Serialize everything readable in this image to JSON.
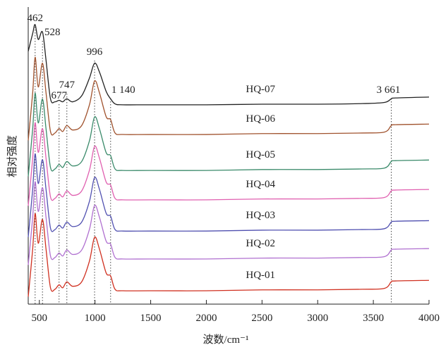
{
  "chart_data": {
    "type": "line",
    "x_label": "波数/cm⁻¹",
    "y_label": "相对强度",
    "x": [
      400,
      440,
      462,
      490,
      528,
      560,
      600,
      640,
      677,
      710,
      747,
      800,
      880,
      950,
      996,
      1040,
      1100,
      1140,
      1180,
      1250,
      1500,
      2000,
      2500,
      3000,
      3400,
      3600,
      3661,
      3700,
      4000
    ],
    "series": [
      {
        "name": "HQ-07",
        "color": "#222222",
        "values": [
          85.1,
          91.1,
          94.1,
          89.1,
          91.6,
          82.1,
          69.1,
          68.1,
          68.6,
          68.1,
          69.1,
          68.1,
          70.1,
          76.1,
          81.1,
          78.1,
          71.6,
          69.1,
          67.4,
          67.1,
          67.1,
          67.1,
          67.3,
          67.3,
          67.5,
          67.9,
          69.1,
          69.4,
          69.7
        ]
      },
      {
        "name": "HQ-06",
        "color": "#a0522d",
        "values": [
          55.1,
          71.1,
          83.1,
          73.1,
          81.1,
          71.1,
          58.1,
          57.6,
          59.1,
          58.1,
          60.1,
          58.6,
          60.1,
          67.1,
          75.1,
          71.1,
          63.1,
          62.1,
          57.6,
          57.1,
          57.1,
          57.1,
          57.4,
          57.4,
          57.6,
          57.9,
          60.1,
          60.4,
          60.6
        ]
      },
      {
        "name": "HQ-05",
        "color": "#3a8a6a",
        "values": [
          43,
          59,
          71,
          61,
          69,
          59,
          46,
          45.5,
          47,
          46,
          48,
          46.5,
          48,
          55,
          63,
          59,
          51,
          50,
          45.5,
          45,
          45,
          45,
          45.3,
          45.3,
          45.5,
          45.8,
          48,
          48.3,
          48.5
        ]
      },
      {
        "name": "HQ-04",
        "color": "#e060b0",
        "values": [
          33.1,
          49.1,
          61.1,
          51.1,
          59.1,
          49.1,
          36.1,
          35.6,
          37.1,
          36.1,
          38.1,
          36.6,
          38.1,
          45.1,
          53.1,
          49.1,
          41.1,
          40.1,
          35.6,
          35.1,
          35.1,
          35.1,
          35.4,
          35.4,
          35.6,
          35.9,
          38.1,
          38.4,
          38.6
        ]
      },
      {
        "name": "HQ-03",
        "color": "#5050b0",
        "values": [
          22.6,
          38.6,
          50.6,
          40.6,
          48.6,
          38.6,
          25.6,
          25.1,
          26.6,
          25.6,
          27.6,
          26.1,
          27.6,
          34.6,
          42.6,
          38.6,
          30.6,
          29.6,
          25.1,
          24.6,
          24.6,
          24.6,
          24.9,
          24.9,
          25.1,
          25.4,
          27.6,
          27.9,
          28.1
        ]
      },
      {
        "name": "HQ-02",
        "color": "#b070d0",
        "values": [
          13.2,
          29.2,
          41.2,
          31.2,
          39.2,
          29.2,
          16.2,
          15.7,
          17.2,
          16.2,
          18.2,
          16.7,
          18.2,
          25.2,
          33.2,
          29.2,
          21.2,
          20.2,
          15.7,
          15.2,
          15.2,
          15.2,
          15.5,
          15.5,
          15.7,
          16,
          18.2,
          18.5,
          18.7
        ]
      },
      {
        "name": "HQ-01",
        "color": "#d03020",
        "values": [
          2.5,
          18.5,
          30.5,
          20.5,
          28.5,
          18.5,
          5.5,
          5,
          6.5,
          5.5,
          7.5,
          6,
          7.5,
          14.5,
          22.5,
          18.5,
          10.5,
          9.5,
          5,
          4.5,
          4.5,
          4.5,
          4.8,
          4.8,
          5,
          5.3,
          7.5,
          7.8,
          8
        ]
      }
    ],
    "peaks": [
      462,
      528,
      677,
      747,
      996,
      {
        "value": 1140,
        "label": "1 140"
      },
      {
        "value": 3661,
        "label": "3 661"
      }
    ],
    "xlim": [
      400,
      4000
    ],
    "ylim": [
      0,
      100
    ],
    "xticks": [
      500,
      1000,
      1500,
      2000,
      2500,
      3000,
      3500,
      4000
    ]
  }
}
